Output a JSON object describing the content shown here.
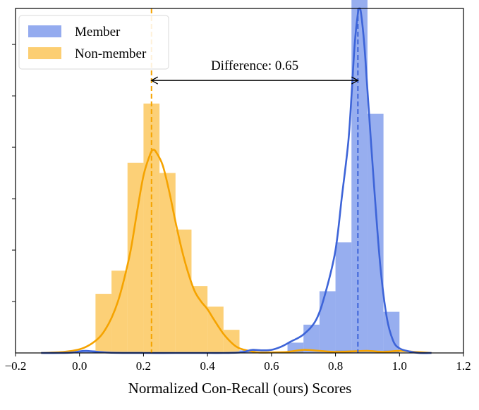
{
  "chart_data": {
    "type": "histogram",
    "xlabel": "Normalized Con-Recall (ours) Scores",
    "ylabel": "",
    "xlim": [
      -0.2,
      1.2
    ],
    "ylim": [
      0,
      67
    ],
    "x_ticks": [
      "−0.2",
      "0.0",
      "0.2",
      "0.4",
      "0.6",
      "0.8",
      "1.0",
      "1.2"
    ],
    "y_tick_values": [
      10,
      20,
      30,
      40,
      50,
      60
    ],
    "y_tick_labels_shown": false,
    "grid": false,
    "legend_position": "top-left",
    "legend": [
      {
        "label": "Member",
        "color": "#6688e8"
      },
      {
        "label": "Non-member",
        "color": "#fbb936"
      }
    ],
    "bin_width": 0.05,
    "series": [
      {
        "name": "Member",
        "color": "#6688e8",
        "kde_color": "#3d64d8",
        "bin_starts": [
          -0.15,
          -0.1,
          -0.05,
          0.0,
          0.05,
          0.1,
          0.15,
          0.2,
          0.25,
          0.3,
          0.35,
          0.4,
          0.45,
          0.5,
          0.55,
          0.6,
          0.65,
          0.7,
          0.75,
          0.8,
          0.85,
          0.9,
          0.95,
          1.0,
          1.05
        ],
        "counts": [
          0,
          0,
          0,
          0.5,
          0,
          0,
          0,
          0,
          0,
          0,
          0,
          0,
          0,
          0.5,
          0,
          0,
          2,
          5.5,
          12,
          21.5,
          69.5,
          46.5,
          8,
          0,
          0
        ],
        "mean": 0.87,
        "kde_x": [
          -0.12,
          -0.06,
          -0.02,
          0.0,
          0.02,
          0.04,
          0.06,
          0.1,
          0.2,
          0.3,
          0.4,
          0.45,
          0.5,
          0.52,
          0.54,
          0.57,
          0.6,
          0.63,
          0.66,
          0.7,
          0.74,
          0.77,
          0.8,
          0.82,
          0.84,
          0.85,
          0.86,
          0.87,
          0.875,
          0.88,
          0.89,
          0.9,
          0.92,
          0.94,
          0.96,
          0.98,
          1.0,
          1.03,
          1.06,
          1.1
        ],
        "kde_y": [
          0,
          0,
          0.1,
          0.3,
          0.4,
          0.3,
          0.2,
          0.05,
          0,
          0,
          0,
          0,
          0.1,
          0.3,
          0.6,
          0.5,
          0.6,
          1.2,
          2.2,
          3.6,
          6.5,
          12,
          20,
          30.4,
          41,
          50,
          60,
          66,
          67,
          66,
          60,
          51,
          33,
          17,
          7,
          2.4,
          0.9,
          0.3,
          0,
          0
        ]
      },
      {
        "name": "Non-member",
        "color": "#fbb936",
        "kde_color": "#f5a300",
        "bin_starts": [
          -0.15,
          -0.1,
          -0.05,
          0.0,
          0.05,
          0.1,
          0.15,
          0.2,
          0.25,
          0.3,
          0.35,
          0.4,
          0.45,
          0.5,
          0.55,
          0.6,
          0.65,
          0.7,
          0.75,
          0.8,
          0.85,
          0.9,
          0.95,
          1.0,
          1.05
        ],
        "counts": [
          0,
          0,
          0,
          0,
          11.5,
          16,
          37,
          48.5,
          35,
          24,
          13,
          9,
          4.5,
          0,
          0,
          0,
          0.5,
          0,
          0,
          0.5,
          0,
          0,
          0.5,
          0,
          0
        ],
        "mean": 0.225,
        "kde_x": [
          -0.12,
          -0.05,
          0.0,
          0.03,
          0.06,
          0.08,
          0.1,
          0.12,
          0.14,
          0.16,
          0.18,
          0.2,
          0.22,
          0.23,
          0.24,
          0.26,
          0.28,
          0.3,
          0.32,
          0.34,
          0.36,
          0.38,
          0.4,
          0.42,
          0.45,
          0.48,
          0.5,
          0.53,
          0.56,
          0.6,
          0.65,
          0.7,
          0.75,
          0.8,
          0.85,
          0.9,
          0.95,
          1.0,
          1.05,
          1.1
        ],
        "kde_y": [
          0,
          0.2,
          0.7,
          1.5,
          2.9,
          4.5,
          6.8,
          10,
          14.5,
          20,
          27.5,
          34.5,
          38.5,
          39.5,
          39,
          36.5,
          31.5,
          25.5,
          20,
          15.5,
          12,
          10,
          8.5,
          6.5,
          3.7,
          1.7,
          0.9,
          0.4,
          0.1,
          0.1,
          0.2,
          0.6,
          0.4,
          0.2,
          0.3,
          0.4,
          0.2,
          0.4,
          0.2,
          0
        ]
      }
    ],
    "annotation": {
      "text": "Difference: 0.65",
      "arrow_from": 0.225,
      "arrow_to": 0.87,
      "y": 53
    }
  }
}
